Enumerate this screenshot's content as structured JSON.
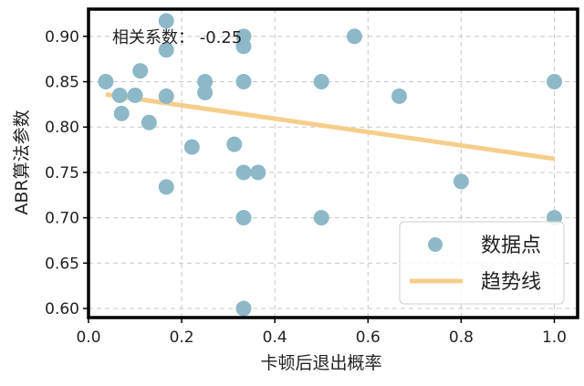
{
  "chart_data": {
    "type": "scatter",
    "annotation": "相关系数： -0.25",
    "xlabel": "卡顿后退出概率",
    "ylabel": "ABR算法参数",
    "xlim": [
      0.0,
      1.05
    ],
    "ylim": [
      0.59,
      0.93
    ],
    "xticks": [
      0.0,
      0.2,
      0.4,
      0.6,
      0.8,
      1.0
    ],
    "yticks": [
      0.6,
      0.65,
      0.7,
      0.75,
      0.8,
      0.85,
      0.9
    ],
    "xtick_labels": [
      "0.0",
      "0.2",
      "0.4",
      "0.6",
      "0.8",
      "1.0"
    ],
    "ytick_labels": [
      "0.60",
      "0.65",
      "0.70",
      "0.75",
      "0.80",
      "0.85",
      "0.90"
    ],
    "grid": true,
    "legend_position": "bottom-right",
    "legend": [
      {
        "label": "数据点",
        "marker": "dot"
      },
      {
        "label": "趋势线",
        "marker": "line"
      }
    ],
    "colors": {
      "points": "#8db8c8",
      "trend": "#f5ce8c",
      "frame": "#000000",
      "grid": "#c8c8c8"
    },
    "points": [
      {
        "x": 0.037,
        "y": 0.85
      },
      {
        "x": 0.067,
        "y": 0.835
      },
      {
        "x": 0.071,
        "y": 0.815
      },
      {
        "x": 0.1,
        "y": 0.835
      },
      {
        "x": 0.111,
        "y": 0.862
      },
      {
        "x": 0.13,
        "y": 0.805
      },
      {
        "x": 0.167,
        "y": 0.917
      },
      {
        "x": 0.167,
        "y": 0.885
      },
      {
        "x": 0.167,
        "y": 0.834
      },
      {
        "x": 0.167,
        "y": 0.734
      },
      {
        "x": 0.222,
        "y": 0.778
      },
      {
        "x": 0.25,
        "y": 0.85
      },
      {
        "x": 0.25,
        "y": 0.838
      },
      {
        "x": 0.313,
        "y": 0.781
      },
      {
        "x": 0.333,
        "y": 0.9
      },
      {
        "x": 0.333,
        "y": 0.889
      },
      {
        "x": 0.333,
        "y": 0.85
      },
      {
        "x": 0.333,
        "y": 0.75
      },
      {
        "x": 0.333,
        "y": 0.7
      },
      {
        "x": 0.333,
        "y": 0.6
      },
      {
        "x": 0.364,
        "y": 0.75
      },
      {
        "x": 0.5,
        "y": 0.85
      },
      {
        "x": 0.5,
        "y": 0.7
      },
      {
        "x": 0.571,
        "y": 0.9
      },
      {
        "x": 0.667,
        "y": 0.834
      },
      {
        "x": 0.8,
        "y": 0.74
      },
      {
        "x": 1.0,
        "y": 0.85
      },
      {
        "x": 1.0,
        "y": 0.7
      }
    ],
    "trend_line": {
      "x": [
        0.037,
        1.0
      ],
      "y": [
        0.836,
        0.765
      ]
    }
  }
}
